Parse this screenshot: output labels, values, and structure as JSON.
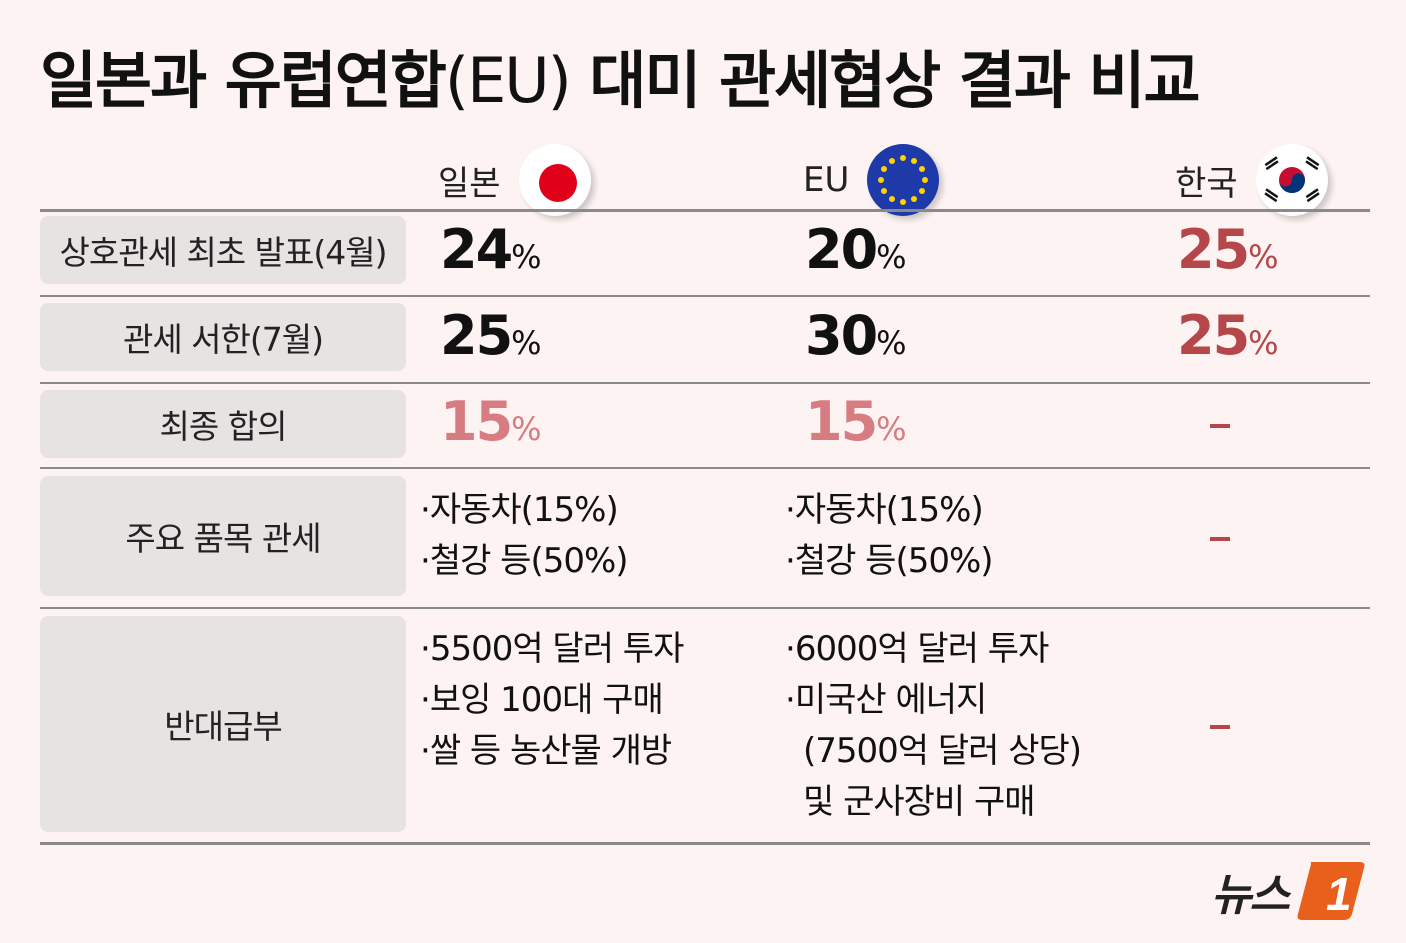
{
  "title": {
    "main": "일본과 유럽연합",
    "paren": "(EU)",
    "rest": " 대미 관세협상 결과 비교"
  },
  "columns": [
    {
      "label": "일본",
      "flag": "japan-flag-icon"
    },
    {
      "label": "EU",
      "flag": "eu-flag-icon"
    },
    {
      "label": "한국",
      "flag": "korea-flag-icon"
    }
  ],
  "rows": {
    "initial": {
      "label": "상호관세 최초 발표(4월)",
      "japan": "24",
      "eu": "20",
      "korea": "25"
    },
    "letter": {
      "label": "관세 서한(7월)",
      "japan": "25",
      "eu": "30",
      "korea": "25"
    },
    "final": {
      "label": "최종 합의",
      "japan": "15",
      "eu": "15",
      "korea": "–"
    },
    "items": {
      "label": "주요 품목 관세",
      "japan": [
        "자동차(15%)",
        "철강 등(50%)"
      ],
      "eu": [
        "자동차(15%)",
        "철강 등(50%)"
      ],
      "korea": "–"
    },
    "benefits": {
      "label": "반대급부",
      "japan": [
        "5500억 달러 투자",
        "보잉 100대 구매",
        "쌀 등 농산물 개방"
      ],
      "eu": [
        "6000억 달러 투자",
        "미국산 에너지",
        "(7500억 달러 상당)",
        "및 군사장비 구매"
      ],
      "korea": "–"
    }
  },
  "percent_sign": "%",
  "bullet_mark": "·",
  "logo": {
    "text": "뉴스",
    "mark": "1"
  },
  "colors": {
    "background": "#fdf3f3",
    "label_bg": "#e8e3e3",
    "accent_red": "#b5474a",
    "accent_pink": "#d77c80",
    "japan_red": "#e00018",
    "eu_blue": "#1d3aa8",
    "logo_orange": "#e8601c"
  }
}
